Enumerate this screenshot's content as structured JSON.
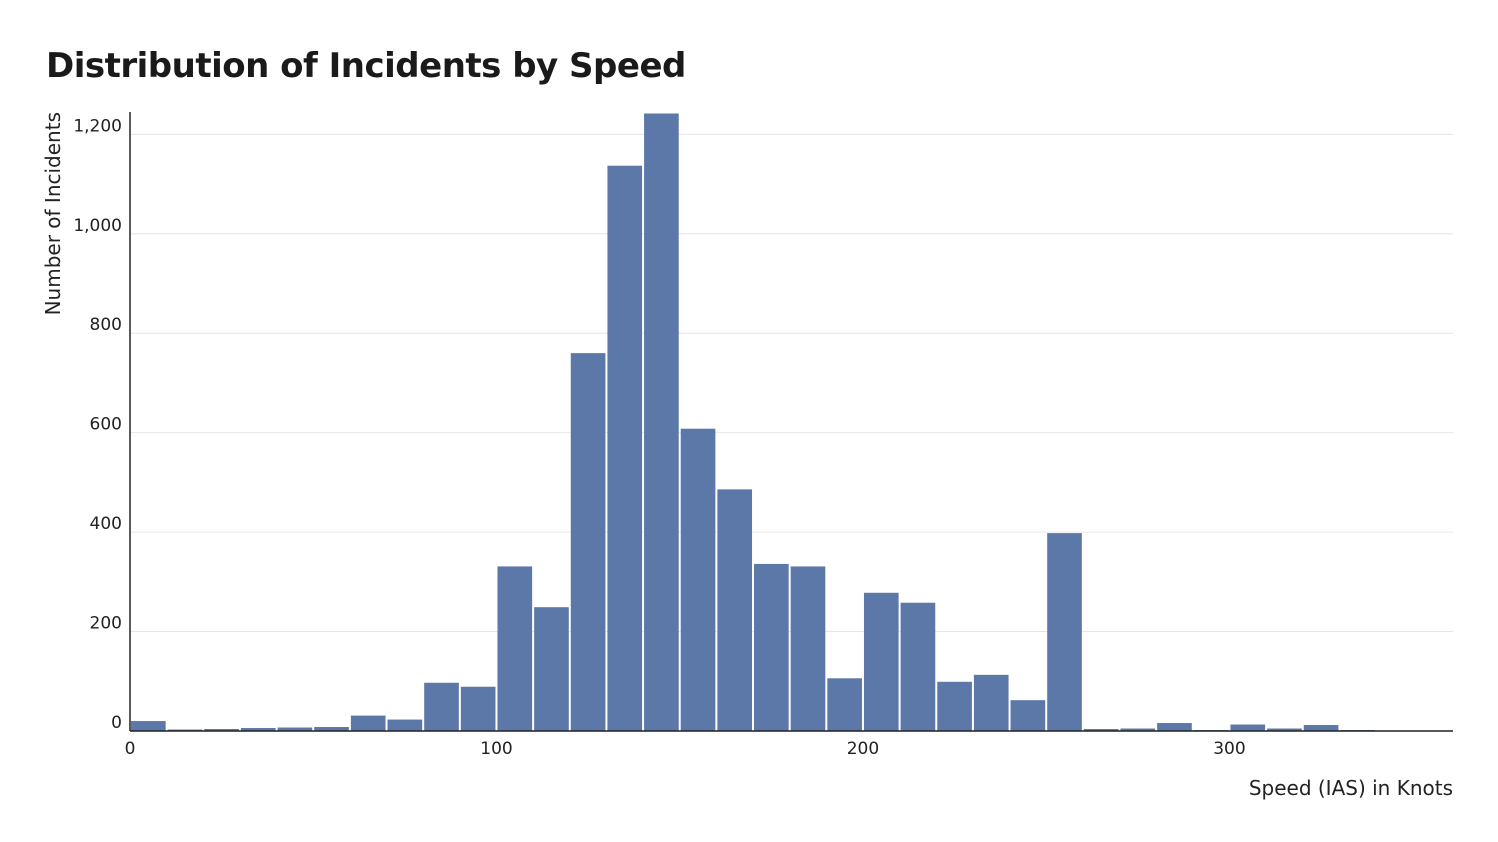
{
  "chart_data": {
    "type": "bar",
    "title": "Distribution of Incidents by Speed",
    "xlabel": "Speed (IAS) in Knots",
    "ylabel": "Number of Incidents",
    "bin_width": 10,
    "xlim": [
      0,
      361
    ],
    "ylim": [
      0,
      1245
    ],
    "x_ticks": [
      0,
      100,
      200,
      300
    ],
    "y_ticks": [
      0,
      200,
      400,
      600,
      800,
      1000,
      1200
    ],
    "x_tick_labels": [
      "0",
      "100",
      "200",
      "300"
    ],
    "y_tick_labels": [
      "0",
      "200",
      "400",
      "600",
      "800",
      "1,000",
      "1,200"
    ],
    "grid": "horizontal",
    "color": "#5b78a8",
    "bins": [
      {
        "x0": 0,
        "value": 20
      },
      {
        "x0": 10,
        "value": 3
      },
      {
        "x0": 20,
        "value": 4
      },
      {
        "x0": 30,
        "value": 6
      },
      {
        "x0": 40,
        "value": 7
      },
      {
        "x0": 50,
        "value": 8
      },
      {
        "x0": 60,
        "value": 31
      },
      {
        "x0": 70,
        "value": 23
      },
      {
        "x0": 80,
        "value": 97
      },
      {
        "x0": 90,
        "value": 89
      },
      {
        "x0": 100,
        "value": 331
      },
      {
        "x0": 110,
        "value": 249
      },
      {
        "x0": 120,
        "value": 760
      },
      {
        "x0": 130,
        "value": 1137
      },
      {
        "x0": 140,
        "value": 1242
      },
      {
        "x0": 150,
        "value": 608
      },
      {
        "x0": 160,
        "value": 486
      },
      {
        "x0": 170,
        "value": 336
      },
      {
        "x0": 180,
        "value": 331
      },
      {
        "x0": 190,
        "value": 106
      },
      {
        "x0": 200,
        "value": 278
      },
      {
        "x0": 210,
        "value": 258
      },
      {
        "x0": 220,
        "value": 99
      },
      {
        "x0": 230,
        "value": 113
      },
      {
        "x0": 240,
        "value": 62
      },
      {
        "x0": 250,
        "value": 398
      },
      {
        "x0": 260,
        "value": 4
      },
      {
        "x0": 270,
        "value": 5
      },
      {
        "x0": 280,
        "value": 16
      },
      {
        "x0": 290,
        "value": 2
      },
      {
        "x0": 300,
        "value": 13
      },
      {
        "x0": 310,
        "value": 5
      },
      {
        "x0": 320,
        "value": 12
      },
      {
        "x0": 330,
        "value": 2
      },
      {
        "x0": 340,
        "value": 1
      },
      {
        "x0": 350,
        "value": 1
      }
    ]
  }
}
